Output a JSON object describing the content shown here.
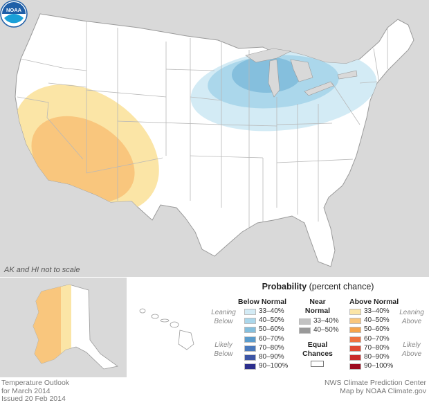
{
  "map": {
    "scale_note": "AK and HI not to scale",
    "logo_text": "NOAA",
    "colors": {
      "land": "#ffffff",
      "background": "#d9d9d9",
      "state_border": "#b8b8b8",
      "lake": "#d9d9d9"
    }
  },
  "legend": {
    "title_bold": "Probability",
    "title_rest": " (percent chance)",
    "below_normal": {
      "heading": "Below Normal",
      "leaning_label": [
        "Leaning",
        "Below"
      ],
      "likely_label": [
        "Likely",
        "Below"
      ],
      "bins": [
        {
          "label": "33–40%",
          "color": "#d3ebf5"
        },
        {
          "label": "40–50%",
          "color": "#abd7eb"
        },
        {
          "label": "50–60%",
          "color": "#85bfdd"
        },
        {
          "label": "60–70%",
          "color": "#5b9ccc"
        },
        {
          "label": "70–80%",
          "color": "#4a79bd"
        },
        {
          "label": "80–90%",
          "color": "#3d55a5"
        },
        {
          "label": "90–100%",
          "color": "#2c2e8c"
        }
      ]
    },
    "near_normal": {
      "heading": [
        "Near",
        "Normal"
      ],
      "bins": [
        {
          "label": "33–40%",
          "color": "#c2c2c2"
        },
        {
          "label": "40–50%",
          "color": "#999999"
        }
      ]
    },
    "equal_chances": {
      "heading": [
        "Equal",
        "Chances"
      ],
      "color": "#ffffff"
    },
    "above_normal": {
      "heading": "Above Normal",
      "leaning_label": [
        "Leaning",
        "Above"
      ],
      "likely_label": [
        "Likely",
        "Above"
      ],
      "bins": [
        {
          "label": "33–40%",
          "color": "#fbe5a6"
        },
        {
          "label": "40–50%",
          "color": "#f9c67d"
        },
        {
          "label": "50–60%",
          "color": "#f6a44c"
        },
        {
          "label": "60–70%",
          "color": "#ee7340"
        },
        {
          "label": "70–80%",
          "color": "#e04a34"
        },
        {
          "label": "80–90%",
          "color": "#c92a2a"
        },
        {
          "label": "90–100%",
          "color": "#9c0a1f"
        }
      ]
    }
  },
  "footer": {
    "left": [
      "Temperature Outlook",
      "for March 2014",
      "Issued 20 Feb 2014"
    ],
    "right": [
      "NWS Climate Prediction Center",
      "Map by NOAA Climate.gov"
    ]
  }
}
